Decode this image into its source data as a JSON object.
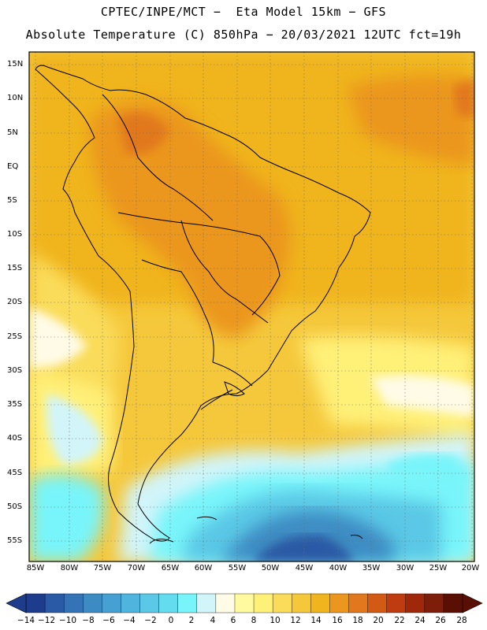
{
  "header": {
    "line1": "CPTEC/INPE/MCT −  Eta Model 15km − GFS",
    "line2": "Absolute Temperature (C) 850hPa − 20/03/2021 12UTC fct=19h"
  },
  "map": {
    "lat_labels": [
      "15N",
      "10N",
      "5N",
      "EQ",
      "5S",
      "10S",
      "15S",
      "20S",
      "25S",
      "30S",
      "35S",
      "40S",
      "45S",
      "50S",
      "55S"
    ],
    "lon_labels": [
      "85W",
      "80W",
      "75W",
      "70W",
      "65W",
      "60W",
      "55W",
      "50W",
      "45W",
      "40W",
      "35W",
      "30W",
      "25W",
      "20W"
    ]
  },
  "colorbar": {
    "ticks": [
      "−14",
      "−12",
      "−10",
      "−8",
      "−6",
      "−4",
      "−2",
      "0",
      "2",
      "4",
      "6",
      "8",
      "10",
      "12",
      "14",
      "16",
      "18",
      "20",
      "22",
      "24",
      "26",
      "28"
    ],
    "colors": [
      "#1e3c8c",
      "#2a5aa5",
      "#3373b6",
      "#3c8cc3",
      "#46a0d2",
      "#4fb4de",
      "#5ac8e6",
      "#64dcf0",
      "#78f5fa",
      "#d2f5fa",
      "#fffbe6",
      "#fffaa0",
      "#fff078",
      "#fadc5a",
      "#f5c83c",
      "#f0b41e",
      "#eb961e",
      "#e1781e",
      "#d25a14",
      "#be3c0f",
      "#a0280a",
      "#7d1e0a",
      "#5a0f05"
    ],
    "legend": "Absolute Temperature (C)"
  }
}
